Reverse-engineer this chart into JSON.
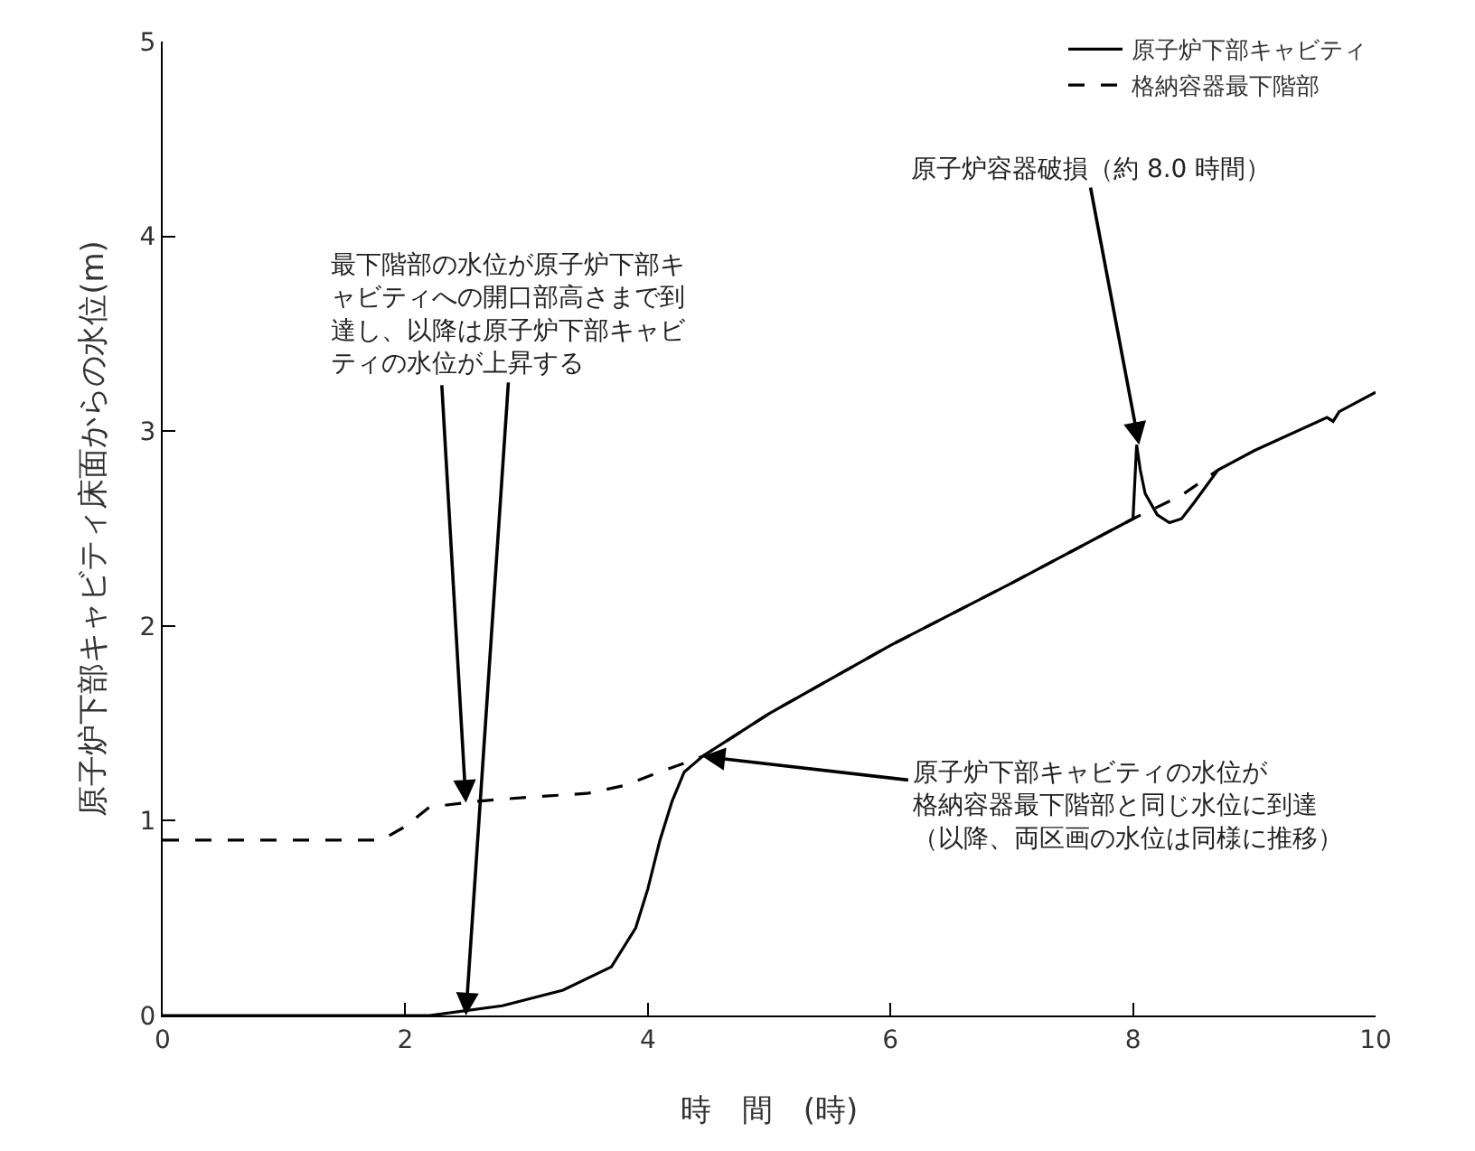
{
  "chart_data": {
    "type": "line",
    "xlabel": "時　間　(時)",
    "ylabel": "原子炉下部キャビティ床面からの水位(m)",
    "xlim": [
      0,
      10
    ],
    "xticks": [
      0,
      2,
      4,
      6,
      8,
      10
    ],
    "ylim": [
      0,
      5
    ],
    "yticks": [
      0,
      1,
      2,
      3,
      4,
      5
    ],
    "grid": false,
    "legend": "top right",
    "marker": "none",
    "series": [
      {
        "name": "原子炉下部キャビティ",
        "color": "#000000",
        "line_style": "solid",
        "x": [
          0,
          2.2,
          2.8,
          3.3,
          3.7,
          3.9,
          4.0,
          4.1,
          4.2,
          4.3,
          4.45,
          5,
          6,
          7,
          8.0,
          8.03,
          8.06,
          8.1,
          8.2,
          8.3,
          8.4,
          8.5,
          8.7,
          9,
          9.6,
          9.65,
          9.7,
          10
        ],
        "values": [
          0,
          0,
          0.05,
          0.13,
          0.25,
          0.45,
          0.65,
          0.9,
          1.1,
          1.25,
          1.33,
          1.55,
          1.9,
          2.22,
          2.55,
          2.93,
          2.8,
          2.68,
          2.57,
          2.53,
          2.55,
          2.63,
          2.8,
          2.9,
          3.07,
          3.05,
          3.1,
          3.2
        ]
      },
      {
        "name": "格納容器最下階部",
        "color": "#000000",
        "line_style": "dashed",
        "x": [
          0,
          1.8,
          2.0,
          2.2,
          2.6,
          3.0,
          3.5,
          3.8,
          4.1,
          4.45,
          5,
          6,
          7,
          8.0,
          8.4,
          8.7
        ],
        "values": [
          0.9,
          0.9,
          0.97,
          1.07,
          1.1,
          1.12,
          1.14,
          1.18,
          1.25,
          1.33,
          1.55,
          1.9,
          2.22,
          2.55,
          2.67,
          2.8
        ]
      }
    ],
    "annotations": [
      {
        "text": "最下階部の水位が原子炉下部キャビティへの開口部高さまで到達し、以降は原子炉下部キャビティの水位が上昇する",
        "x": 2.5,
        "y": 0
      },
      {
        "text": "原子炉容器破損（約 8.0 時間）",
        "x": 8.05,
        "y": 2.93
      },
      {
        "text": "原子炉下部キャビティの水位が格納容器最下階部と同じ水位に到達（以降、両区画の水位は同様に推移）",
        "x": 4.45,
        "y": 1.33
      }
    ]
  }
}
